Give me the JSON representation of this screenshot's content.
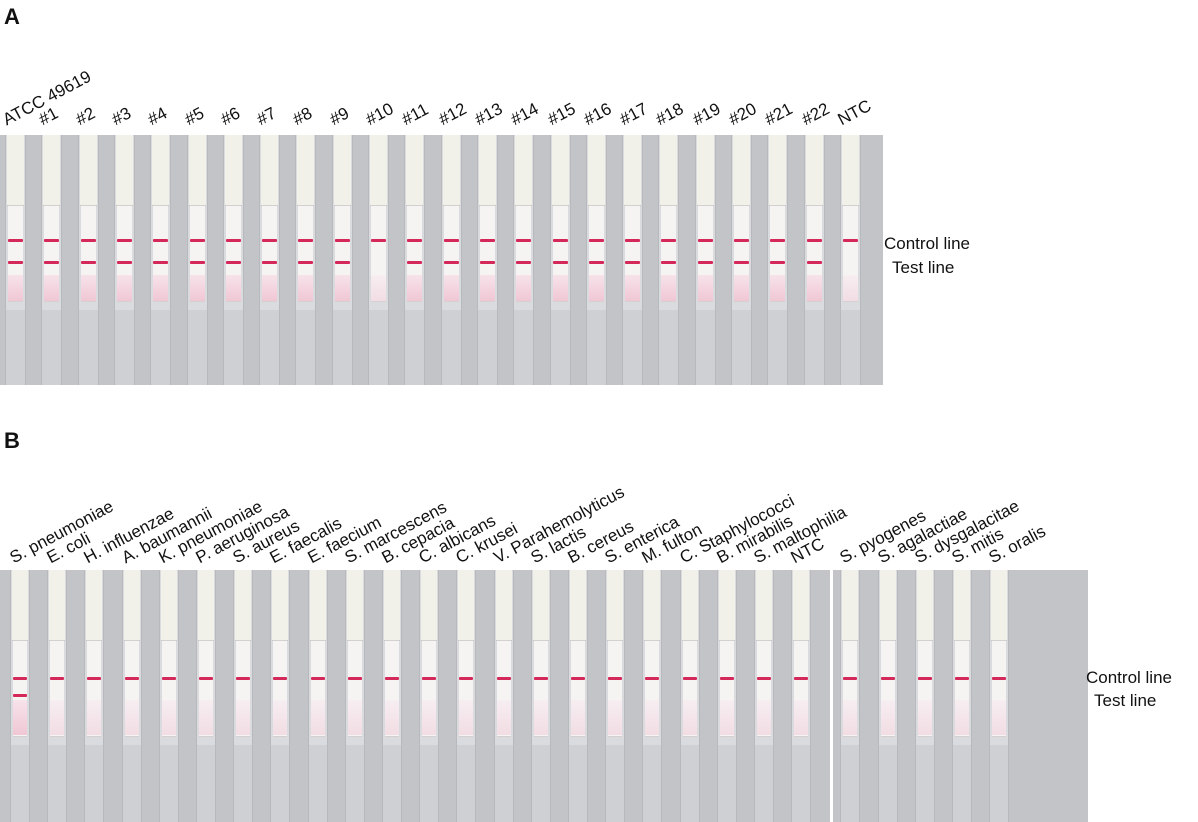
{
  "panel_a": {
    "letter": "A",
    "strip_labels": [
      "ATCC 49619",
      "#1",
      "#2",
      "#3",
      "#4",
      "#5",
      "#6",
      "#7",
      "#8",
      "#9",
      "#10",
      "#11",
      "#12",
      "#13",
      "#14",
      "#15",
      "#16",
      "#17",
      "#18",
      "#19",
      "#20",
      "#21",
      "#22",
      "NTC"
    ],
    "control_line_label": "Control line",
    "test_line_label": "Test line",
    "test_line_present": [
      true,
      true,
      true,
      true,
      true,
      true,
      true,
      true,
      true,
      true,
      false,
      true,
      true,
      true,
      true,
      true,
      true,
      true,
      true,
      true,
      true,
      true,
      true,
      false
    ]
  },
  "panel_b": {
    "letter": "B",
    "strip_labels": [
      "S. pneumoniae",
      "E. coli",
      "H. influenzae",
      "A. baumannii",
      "K. pneumoniae",
      "P. aeruginosa",
      "S. aureus",
      "E. faecalis",
      "E. faecium",
      "S. marcescens",
      "B. cepacia",
      "C. albicans",
      "C. krusei",
      "V. Parahemolyticus",
      "S. lactis",
      "B. cereus",
      "S. enterica",
      "M. fulton",
      "C. Staphylococci",
      "B. mirabilis",
      "S. maltophilia",
      "NTC",
      "S. pyogenes",
      "S. agalactiae",
      "S. dysgalacitae",
      "S. mitis",
      "S. oralis"
    ],
    "control_line_label": "Control line",
    "test_line_label": "Test line",
    "test_line_present": [
      true,
      false,
      false,
      false,
      false,
      false,
      false,
      false,
      false,
      false,
      false,
      false,
      false,
      false,
      false,
      false,
      false,
      false,
      false,
      false,
      false,
      false,
      false,
      false,
      false,
      false,
      false
    ]
  },
  "colors": {
    "control_line": "#d4285a",
    "background_photo": "#c3c4c8"
  }
}
